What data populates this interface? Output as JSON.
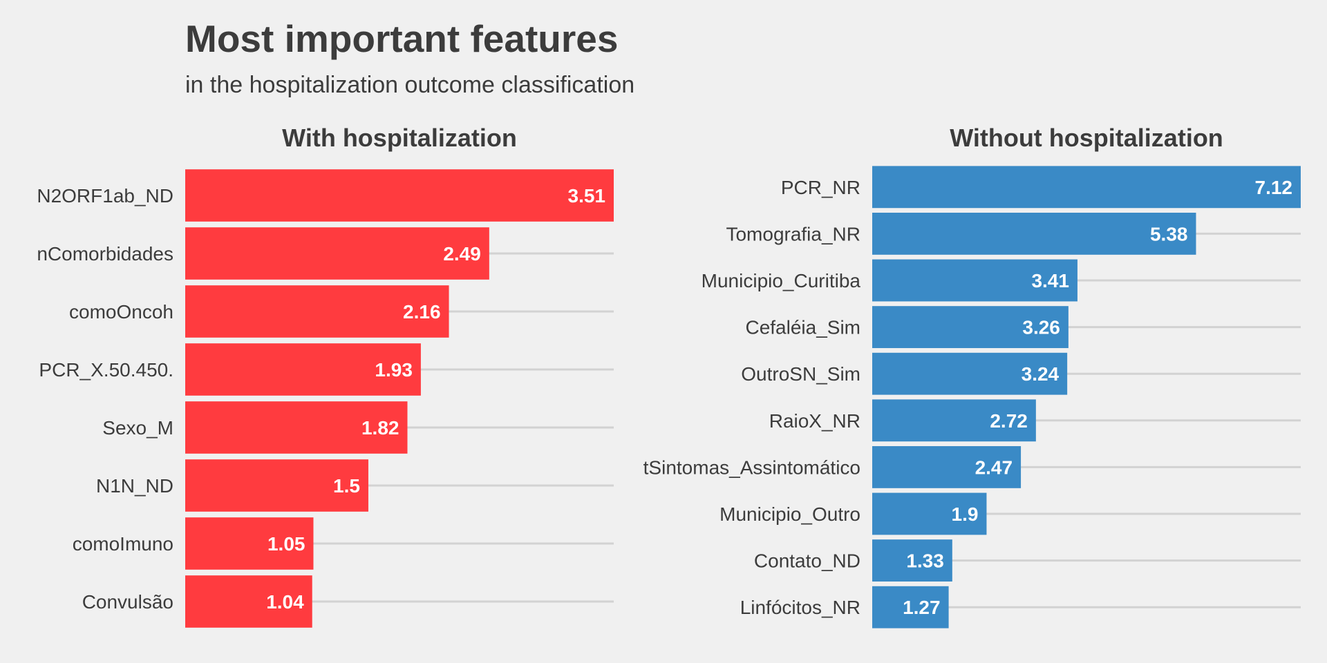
{
  "title": "Most important features",
  "subtitle": "in the hospitalization outcome classification",
  "chart_data": [
    {
      "type": "bar",
      "orientation": "horizontal",
      "title": "With hospitalization",
      "color": "#ff3b3f",
      "grid": true,
      "categories": [
        "N2ORF1ab_ND",
        "nComorbidades",
        "comoOncoh",
        "PCR_X.50.450.",
        "Sexo_M",
        "N1N_ND",
        "comoImuno",
        "Convulsão"
      ],
      "values": [
        3.51,
        2.49,
        2.16,
        1.93,
        1.82,
        1.5,
        1.05,
        1.04
      ],
      "value_labels": [
        "3.51",
        "2.49",
        "2.16",
        "1.93",
        "1.82",
        "1.5",
        "1.05",
        "1.04"
      ],
      "xlim": [
        0,
        3.51
      ]
    },
    {
      "type": "bar",
      "orientation": "horizontal",
      "title": "Without hospitalization",
      "color": "#3a8ac6",
      "grid": true,
      "categories": [
        "PCR_NR",
        "Tomografia_NR",
        "Municipio_Curitiba",
        "Cefaléia_Sim",
        "OutroSN_Sim",
        "RaioX_NR",
        "tSintomas_Assintomático",
        "Municipio_Outro",
        "Contato_ND",
        "Linfócitos_NR"
      ],
      "values": [
        7.12,
        5.38,
        3.41,
        3.26,
        3.24,
        2.72,
        2.47,
        1.9,
        1.33,
        1.27
      ],
      "value_labels": [
        "7.12",
        "5.38",
        "3.41",
        "3.26",
        "3.24",
        "2.72",
        "2.47",
        "1.9",
        "1.33",
        "1.27"
      ],
      "xlim": [
        0,
        7.12
      ]
    }
  ]
}
